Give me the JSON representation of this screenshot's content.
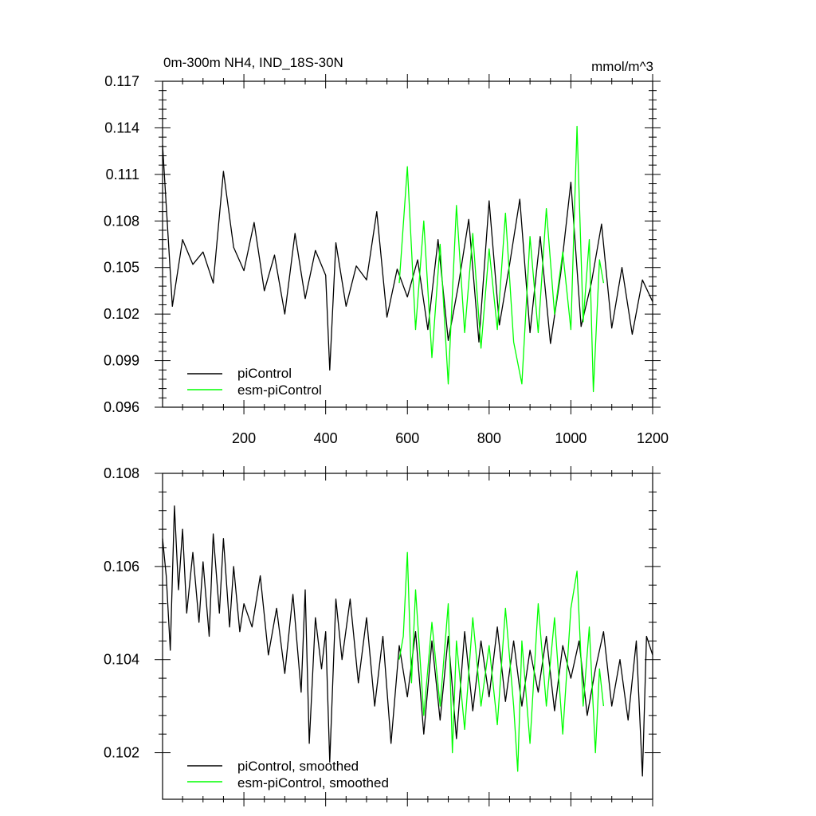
{
  "chart_data": [
    {
      "type": "line",
      "title": "0m-300m NH4, IND_18S-30N",
      "units": "mmol/m^3",
      "xlim": [
        1,
        1200
      ],
      "ylim": [
        0.096,
        0.117
      ],
      "x_tick_labels": [
        "200",
        "400",
        "600",
        "800",
        "1000",
        "1200"
      ],
      "x_ticks": [
        200,
        400,
        600,
        800,
        1000,
        1200
      ],
      "y_tick_labels": [
        "0.096",
        "0.099",
        "0.102",
        "0.105",
        "0.108",
        "0.111",
        "0.114",
        "0.117"
      ],
      "y_ticks": [
        0.096,
        0.099,
        0.102,
        0.105,
        0.108,
        0.111,
        0.114,
        0.117
      ],
      "legend_position": "bottom-left",
      "series": [
        {
          "name": "piControl",
          "color": "#000000",
          "x": [
            1,
            25,
            50,
            75,
            100,
            125,
            150,
            175,
            200,
            225,
            250,
            275,
            300,
            325,
            350,
            375,
            400,
            410,
            425,
            450,
            475,
            500,
            525,
            550,
            575,
            600,
            625,
            650,
            675,
            700,
            725,
            750,
            775,
            800,
            825,
            850,
            875,
            900,
            925,
            950,
            975,
            1000,
            1025,
            1050,
            1075,
            1100,
            1125,
            1150,
            1175,
            1200
          ],
          "y": [
            0.1129,
            0.1025,
            0.1068,
            0.1052,
            0.106,
            0.104,
            0.1112,
            0.1063,
            0.1048,
            0.1079,
            0.1035,
            0.1058,
            0.102,
            0.1072,
            0.103,
            0.1061,
            0.1045,
            0.0984,
            0.1066,
            0.1025,
            0.1051,
            0.1042,
            0.1086,
            0.1018,
            0.1049,
            0.1031,
            0.1055,
            0.101,
            0.1068,
            0.1003,
            0.1039,
            0.1081,
            0.1002,
            0.1093,
            0.1013,
            0.1052,
            0.1094,
            0.1008,
            0.107,
            0.1001,
            0.1046,
            0.1105,
            0.1012,
            0.104,
            0.1078,
            0.1011,
            0.105,
            0.1007,
            0.1042,
            0.1028
          ]
        },
        {
          "name": "esm-piControl",
          "color": "#00ff00",
          "x": [
            580,
            600,
            620,
            640,
            660,
            680,
            700,
            720,
            740,
            760,
            780,
            800,
            820,
            840,
            860,
            880,
            900,
            920,
            940,
            960,
            980,
            1000,
            1015,
            1030,
            1045,
            1055,
            1070,
            1080
          ],
          "y": [
            0.104,
            0.1115,
            0.101,
            0.108,
            0.0992,
            0.1065,
            0.0975,
            0.109,
            0.1008,
            0.1072,
            0.0998,
            0.1062,
            0.101,
            0.1085,
            0.1002,
            0.0975,
            0.107,
            0.1008,
            0.1088,
            0.102,
            0.106,
            0.101,
            0.1141,
            0.1015,
            0.1068,
            0.097,
            0.1055,
            0.104
          ]
        }
      ]
    },
    {
      "type": "line",
      "xlim": [
        1,
        1200
      ],
      "ylim": [
        0.101,
        0.108
      ],
      "x_ticks": [
        200,
        400,
        600,
        800,
        1000,
        1200
      ],
      "y_tick_labels": [
        "0.102",
        "0.104",
        "0.106",
        "0.108"
      ],
      "y_ticks": [
        0.102,
        0.104,
        0.106,
        0.108
      ],
      "legend_position": "bottom-left",
      "series": [
        {
          "name": "piControl, smoothed",
          "color": "#000000",
          "x": [
            1,
            10,
            20,
            30,
            40,
            50,
            60,
            75,
            90,
            100,
            115,
            125,
            140,
            150,
            165,
            175,
            190,
            200,
            220,
            240,
            260,
            280,
            300,
            320,
            340,
            350,
            360,
            375,
            390,
            400,
            410,
            425,
            440,
            460,
            480,
            500,
            520,
            540,
            560,
            580,
            600,
            620,
            640,
            660,
            680,
            700,
            720,
            740,
            760,
            780,
            800,
            820,
            840,
            860,
            880,
            900,
            920,
            940,
            960,
            980,
            1000,
            1020,
            1040,
            1060,
            1080,
            1100,
            1120,
            1140,
            1160,
            1175,
            1185,
            1200
          ],
          "y": [
            0.1066,
            0.1058,
            0.1042,
            0.1073,
            0.1055,
            0.1068,
            0.105,
            0.1063,
            0.1048,
            0.1061,
            0.1045,
            0.1067,
            0.105,
            0.1066,
            0.1047,
            0.106,
            0.1046,
            0.1052,
            0.1047,
            0.1058,
            0.1041,
            0.1051,
            0.1037,
            0.1054,
            0.1033,
            0.1055,
            0.1022,
            0.1049,
            0.1038,
            0.1046,
            0.1018,
            0.1053,
            0.104,
            0.1053,
            0.1035,
            0.1049,
            0.103,
            0.1045,
            0.1022,
            0.1043,
            0.1032,
            0.1046,
            0.1024,
            0.1044,
            0.1027,
            0.1045,
            0.1023,
            0.1046,
            0.1029,
            0.1044,
            0.1032,
            0.1047,
            0.1031,
            0.1044,
            0.103,
            0.1042,
            0.1033,
            0.1045,
            0.1029,
            0.1043,
            0.1036,
            0.1044,
            0.1028,
            0.1038,
            0.1046,
            0.103,
            0.104,
            0.1027,
            0.1044,
            0.1015,
            0.1045,
            0.1041
          ]
        },
        {
          "name": "esm-piControl, smoothed",
          "color": "#00ff00",
          "x": [
            580,
            590,
            600,
            610,
            620,
            640,
            660,
            680,
            700,
            710,
            720,
            740,
            760,
            780,
            800,
            820,
            840,
            860,
            870,
            880,
            900,
            920,
            940,
            960,
            980,
            1000,
            1015,
            1030,
            1045,
            1060,
            1070,
            1080
          ],
          "y": [
            0.104,
            0.1045,
            0.1063,
            0.1035,
            0.1055,
            0.1028,
            0.1048,
            0.103,
            0.1052,
            0.102,
            0.1044,
            0.1025,
            0.1049,
            0.103,
            0.1043,
            0.1026,
            0.1051,
            0.103,
            0.1016,
            0.1044,
            0.1022,
            0.1052,
            0.103,
            0.1049,
            0.1024,
            0.1051,
            0.1059,
            0.103,
            0.1047,
            0.102,
            0.1038,
            0.103
          ]
        }
      ]
    }
  ]
}
